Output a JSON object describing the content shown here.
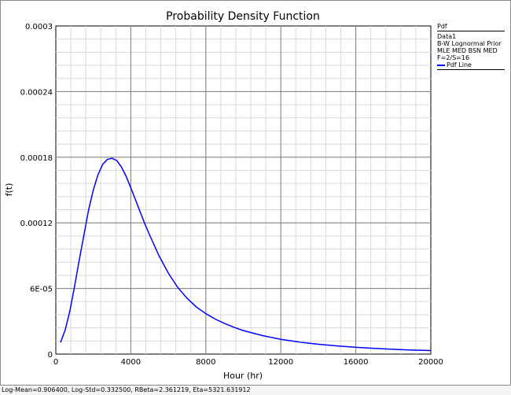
{
  "chart_data": {
    "type": "line",
    "title": "Probability Density Function",
    "xlabel": "Hour (hr)",
    "ylabel": "f(t)",
    "xlim": [
      0,
      20000
    ],
    "ylim": [
      0,
      0.0003
    ],
    "x_ticks": [
      "4000",
      "8000",
      "12000",
      "16000",
      "20000"
    ],
    "x_tick_values": [
      4000,
      8000,
      12000,
      16000,
      20000
    ],
    "x_origin_label": "0",
    "y_ticks": [
      "0",
      "6E-05",
      "0.00012",
      "0.00018",
      "0.00024",
      "0.0003"
    ],
    "y_tick_values": [
      0,
      6e-05,
      0.00012,
      0.00018,
      0.00024,
      0.0003
    ],
    "grid": true,
    "legend_position": "right",
    "legend": {
      "header": "Pdf",
      "lines": [
        "Data1",
        "B-W Lognormal Prior",
        "MLE MED BSN MED",
        "F=2/S=16"
      ],
      "series_label": "Pdf Line"
    },
    "series": [
      {
        "name": "Pdf Line",
        "color": "#0000ff",
        "x": [
          250,
          500,
          750,
          1000,
          1250,
          1500,
          1750,
          2000,
          2250,
          2500,
          2750,
          3000,
          3250,
          3500,
          3750,
          4000,
          4250,
          4500,
          4750,
          5000,
          5500,
          6000,
          6500,
          7000,
          7500,
          8000,
          8500,
          9000,
          9500,
          10000,
          11000,
          12000,
          13000,
          14000,
          15000,
          16000,
          17000,
          18000,
          19000,
          20000
        ],
        "y": [
          1.06e-05,
          2.2e-05,
          3.95e-05,
          6.2e-05,
          8.6e-05,
          0.000109,
          0.000132,
          0.00015,
          0.000164,
          0.0001735,
          0.000178,
          0.000179,
          0.000177,
          0.000171,
          0.0001625,
          0.000152,
          0.000141,
          0.00013,
          0.000119,
          0.000109,
          9e-05,
          7.4e-05,
          6.1e-05,
          5.1e-05,
          4.3e-05,
          3.7e-05,
          3.2e-05,
          2.8e-05,
          2.45e-05,
          2.15e-05,
          1.7e-05,
          1.35e-05,
          1.1e-05,
          9e-06,
          7.5e-06,
          6.2e-06,
          5.2e-06,
          4.4e-06,
          3.7e-06,
          3.2e-06
        ]
      }
    ]
  },
  "status_text": "Log-Mean=0.906400, Log-Std=0.332500, RBeta=2.361219, Eta=5321.631912"
}
